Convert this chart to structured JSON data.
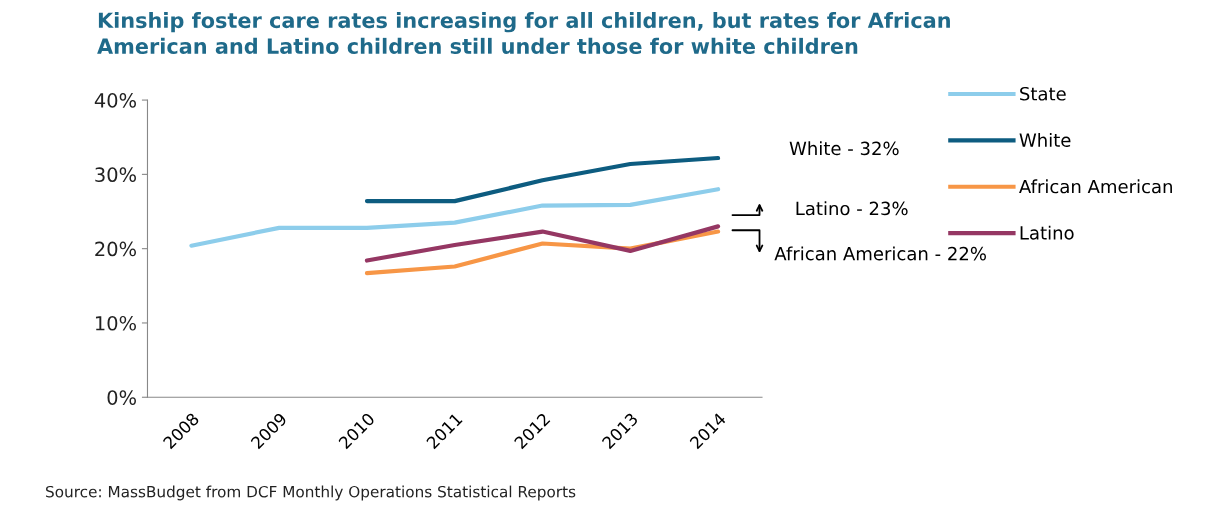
{
  "chart_data": {
    "type": "line",
    "title": "Kinship foster care rates increasing for all children, but rates for African American and Latino children still under those for white children",
    "categories": [
      "2008",
      "2009",
      "2010",
      "2011",
      "2012",
      "2013",
      "2014"
    ],
    "series": [
      {
        "name": "State",
        "color": "#8dcdeb",
        "values": [
          20.4,
          22.8,
          22.8,
          23.5,
          25.8,
          25.9,
          28.0
        ]
      },
      {
        "name": "White",
        "color": "#0d5c80",
        "values": [
          null,
          null,
          26.4,
          26.4,
          29.2,
          31.4,
          32.2
        ]
      },
      {
        "name": "African American",
        "color": "#f79646",
        "values": [
          null,
          null,
          16.7,
          17.6,
          20.7,
          20.0,
          22.3
        ]
      },
      {
        "name": "Latino",
        "color": "#953763",
        "values": [
          null,
          null,
          18.4,
          20.5,
          22.3,
          19.7,
          23.0
        ]
      }
    ],
    "ylim": [
      0,
      40
    ],
    "yticks": [
      {
        "value": 0,
        "label": "0%"
      },
      {
        "value": 10,
        "label": "10%"
      },
      {
        "value": 20,
        "label": "20%"
      },
      {
        "value": 30,
        "label": "30%"
      },
      {
        "value": 40,
        "label": "40%"
      }
    ],
    "grid": false,
    "legend": "right",
    "marker": "none",
    "line_style": "solid",
    "annotations": [
      "White - 32%",
      "Latino - 23%",
      "African American - 22%",
      "Source: MassBudget from DCF Monthly Operations Statistical Reports"
    ]
  }
}
